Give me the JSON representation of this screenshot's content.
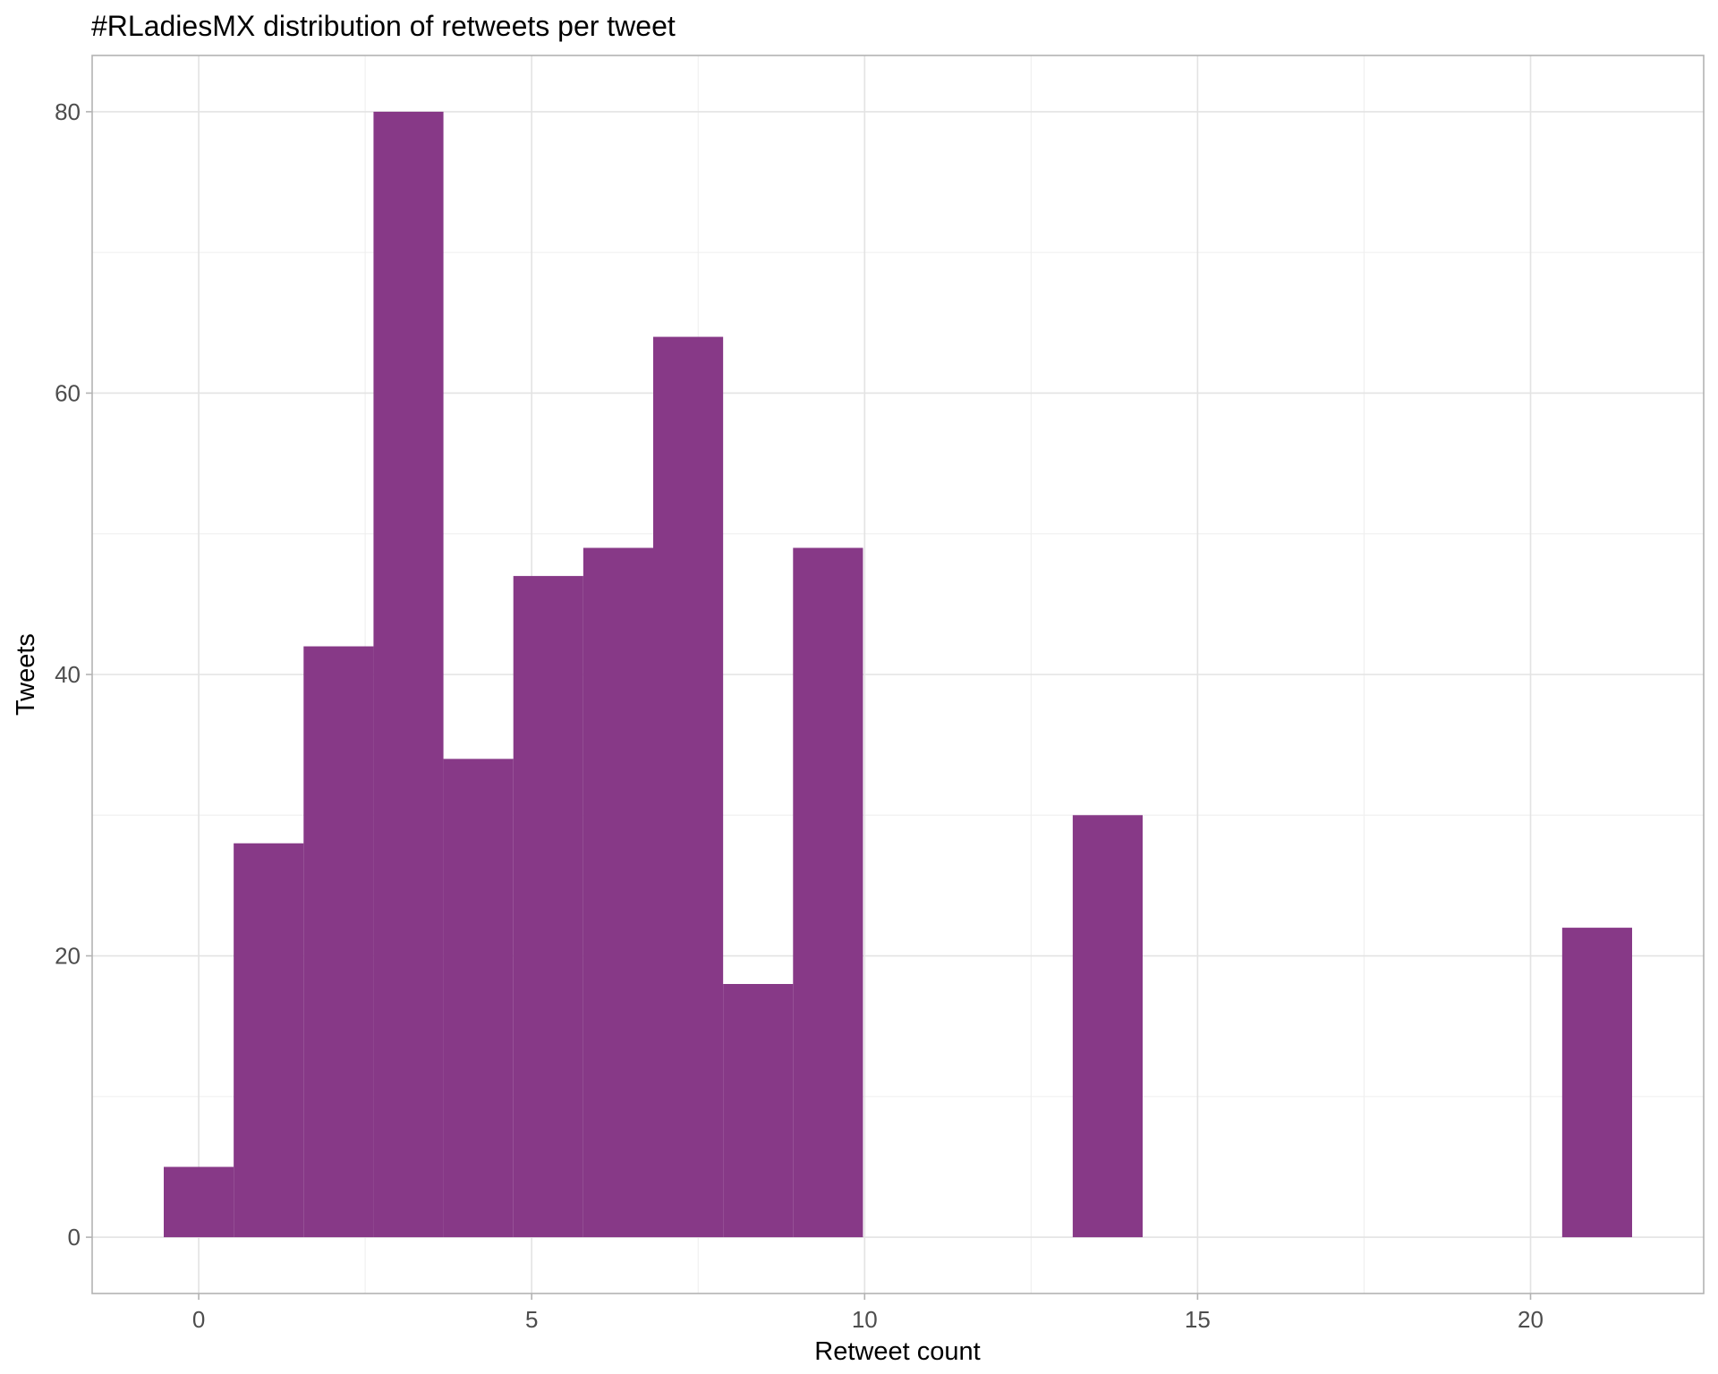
{
  "chart_data": {
    "type": "bar",
    "title": "#RLadiesMX distribution of retweets per tweet",
    "xlabel": "Retweet count",
    "ylabel": "Tweets",
    "xlim": [
      -1.6,
      22.6
    ],
    "ylim": [
      -4,
      84
    ],
    "x_ticks": [
      0,
      5,
      10,
      15,
      20
    ],
    "y_ticks": [
      0,
      20,
      40,
      60,
      80
    ],
    "x_tick_labels": [
      "0",
      "5",
      "10",
      "15",
      "20"
    ],
    "y_tick_labels": [
      "0",
      "20",
      "40",
      "60",
      "80"
    ],
    "bin_width": 1.05,
    "bins": [
      {
        "start": -0.525,
        "end": 0.525,
        "count": 5
      },
      {
        "start": 0.525,
        "end": 1.575,
        "count": 28
      },
      {
        "start": 1.575,
        "end": 2.625,
        "count": 42
      },
      {
        "start": 2.625,
        "end": 3.675,
        "count": 80
      },
      {
        "start": 3.675,
        "end": 4.725,
        "count": 34
      },
      {
        "start": 4.725,
        "end": 5.775,
        "count": 47
      },
      {
        "start": 5.775,
        "end": 6.825,
        "count": 49
      },
      {
        "start": 6.825,
        "end": 7.875,
        "count": 64
      },
      {
        "start": 7.875,
        "end": 8.925,
        "count": 18
      },
      {
        "start": 8.925,
        "end": 9.975,
        "count": 49
      },
      {
        "start": 13.125,
        "end": 14.175,
        "count": 30
      },
      {
        "start": 20.475,
        "end": 21.525,
        "count": 22
      }
    ],
    "grid": true,
    "bar_color": "#873987"
  }
}
